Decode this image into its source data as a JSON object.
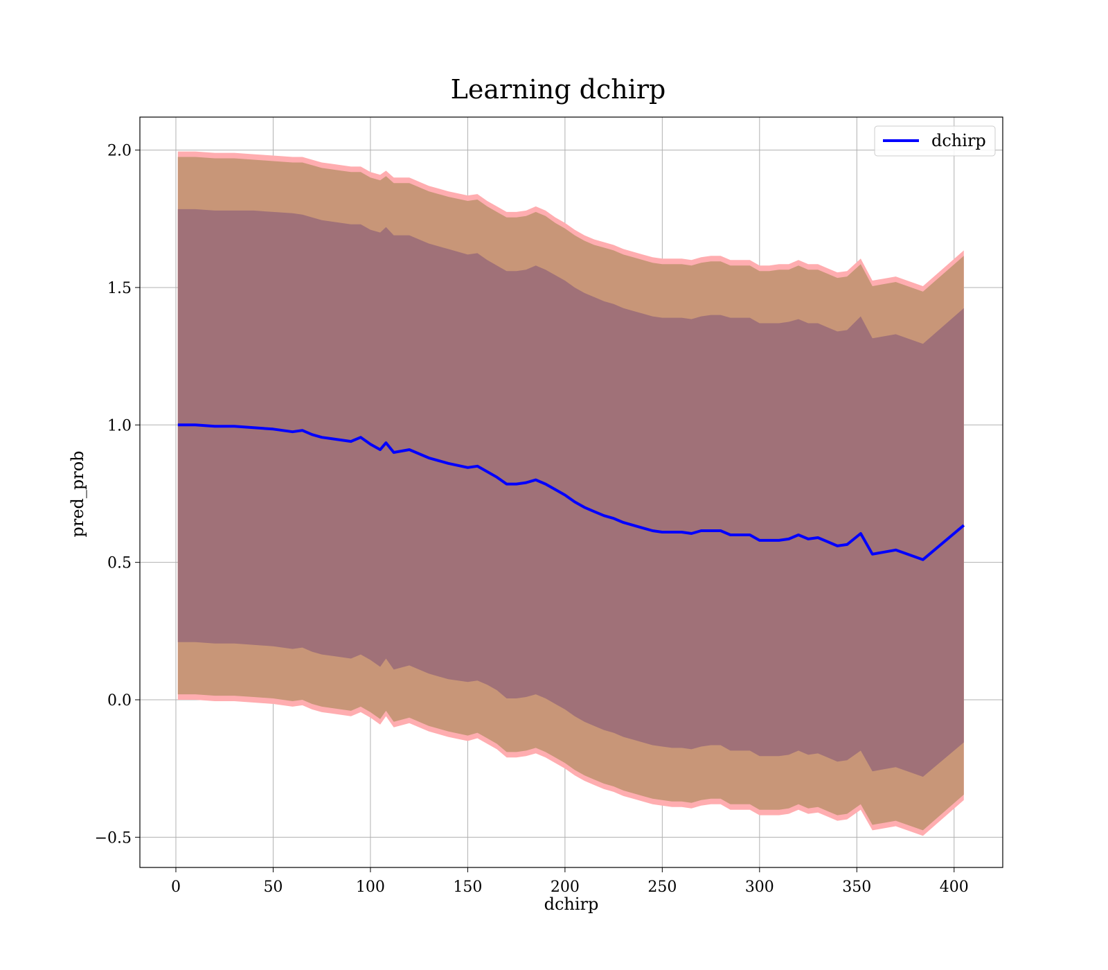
{
  "chart_data": {
    "type": "line",
    "title": "Learning dchirp",
    "xlabel": "dchirp",
    "ylabel": "pred_prob",
    "xlim": [
      -18.5,
      425
    ],
    "ylim": [
      -0.61,
      2.12
    ],
    "xticks": [
      0,
      50,
      100,
      150,
      200,
      250,
      300,
      350,
      400
    ],
    "yticks": [
      -0.5,
      0.0,
      0.5,
      1.0,
      1.5,
      2.0
    ],
    "ytick_labels": [
      "−0.5",
      "0.0",
      "0.5",
      "1.0",
      "1.5",
      "2.0"
    ],
    "grid": true,
    "legend_position": "top-right",
    "colors": {
      "line": "#0000ff",
      "band_outer": "#ffadb0",
      "band_mid": "#c89678",
      "band_inner": "#a07178"
    },
    "series": [
      {
        "name": "dchirp",
        "x": [
          1,
          10,
          20,
          30,
          40,
          50,
          60,
          65,
          70,
          75,
          80,
          85,
          90,
          95,
          100,
          105,
          108,
          112,
          120,
          130,
          140,
          150,
          155,
          160,
          165,
          170,
          175,
          180,
          185,
          190,
          195,
          200,
          205,
          210,
          215,
          220,
          225,
          230,
          235,
          240,
          245,
          250,
          255,
          260,
          265,
          270,
          275,
          280,
          285,
          290,
          295,
          300,
          305,
          310,
          315,
          320,
          325,
          330,
          335,
          340,
          345,
          352,
          358,
          370,
          384,
          405
        ],
        "y": [
          1.0,
          1.0,
          0.995,
          0.995,
          0.99,
          0.985,
          0.975,
          0.98,
          0.965,
          0.955,
          0.95,
          0.945,
          0.94,
          0.955,
          0.93,
          0.91,
          0.935,
          0.9,
          0.91,
          0.88,
          0.86,
          0.845,
          0.85,
          0.83,
          0.81,
          0.785,
          0.785,
          0.79,
          0.8,
          0.785,
          0.765,
          0.745,
          0.72,
          0.7,
          0.685,
          0.67,
          0.66,
          0.645,
          0.635,
          0.625,
          0.615,
          0.61,
          0.61,
          0.61,
          0.605,
          0.615,
          0.615,
          0.615,
          0.6,
          0.6,
          0.6,
          0.58,
          0.58,
          0.58,
          0.585,
          0.6,
          0.585,
          0.59,
          0.575,
          0.56,
          0.565,
          0.605,
          0.53,
          0.545,
          0.51,
          0.635
        ],
        "std1_upper": [
          1.785,
          1.785,
          1.78,
          1.78,
          1.78,
          1.775,
          1.77,
          1.765,
          1.755,
          1.745,
          1.74,
          1.735,
          1.73,
          1.73,
          1.71,
          1.7,
          1.72,
          1.69,
          1.69,
          1.66,
          1.64,
          1.62,
          1.625,
          1.6,
          1.58,
          1.56,
          1.56,
          1.565,
          1.58,
          1.565,
          1.545,
          1.525,
          1.5,
          1.48,
          1.465,
          1.45,
          1.44,
          1.425,
          1.415,
          1.405,
          1.395,
          1.39,
          1.39,
          1.39,
          1.385,
          1.395,
          1.4,
          1.4,
          1.39,
          1.39,
          1.39,
          1.37,
          1.37,
          1.37,
          1.375,
          1.385,
          1.37,
          1.37,
          1.355,
          1.34,
          1.345,
          1.395,
          1.315,
          1.33,
          1.295,
          1.425
        ],
        "std1_lower": [
          0.21,
          0.21,
          0.205,
          0.205,
          0.2,
          0.195,
          0.185,
          0.19,
          0.175,
          0.165,
          0.16,
          0.155,
          0.15,
          0.165,
          0.145,
          0.12,
          0.15,
          0.11,
          0.125,
          0.095,
          0.075,
          0.065,
          0.07,
          0.055,
          0.035,
          0.005,
          0.005,
          0.01,
          0.02,
          0.005,
          -0.015,
          -0.035,
          -0.06,
          -0.08,
          -0.095,
          -0.11,
          -0.12,
          -0.135,
          -0.145,
          -0.155,
          -0.165,
          -0.17,
          -0.175,
          -0.175,
          -0.18,
          -0.17,
          -0.165,
          -0.165,
          -0.185,
          -0.185,
          -0.185,
          -0.205,
          -0.205,
          -0.205,
          -0.2,
          -0.185,
          -0.2,
          -0.195,
          -0.21,
          -0.225,
          -0.22,
          -0.185,
          -0.26,
          -0.245,
          -0.28,
          -0.155
        ],
        "std2_upper": [
          1.975,
          1.975,
          1.97,
          1.97,
          1.965,
          1.96,
          1.955,
          1.955,
          1.945,
          1.935,
          1.93,
          1.925,
          1.92,
          1.92,
          1.9,
          1.89,
          1.905,
          1.88,
          1.88,
          1.85,
          1.83,
          1.815,
          1.82,
          1.795,
          1.775,
          1.755,
          1.755,
          1.76,
          1.775,
          1.76,
          1.735,
          1.715,
          1.69,
          1.67,
          1.655,
          1.645,
          1.635,
          1.62,
          1.61,
          1.6,
          1.59,
          1.585,
          1.585,
          1.585,
          1.58,
          1.59,
          1.595,
          1.595,
          1.58,
          1.58,
          1.58,
          1.56,
          1.56,
          1.565,
          1.565,
          1.58,
          1.565,
          1.565,
          1.55,
          1.535,
          1.54,
          1.585,
          1.505,
          1.52,
          1.485,
          1.615
        ],
        "std2_lower": [
          0.02,
          0.02,
          0.015,
          0.015,
          0.01,
          0.005,
          -0.005,
          0.0,
          -0.015,
          -0.025,
          -0.03,
          -0.035,
          -0.04,
          -0.025,
          -0.045,
          -0.07,
          -0.04,
          -0.08,
          -0.065,
          -0.095,
          -0.115,
          -0.13,
          -0.12,
          -0.14,
          -0.16,
          -0.19,
          -0.19,
          -0.185,
          -0.175,
          -0.19,
          -0.21,
          -0.23,
          -0.255,
          -0.275,
          -0.29,
          -0.305,
          -0.315,
          -0.33,
          -0.34,
          -0.35,
          -0.36,
          -0.365,
          -0.37,
          -0.37,
          -0.375,
          -0.365,
          -0.36,
          -0.36,
          -0.38,
          -0.38,
          -0.38,
          -0.4,
          -0.4,
          -0.4,
          -0.395,
          -0.38,
          -0.395,
          -0.39,
          -0.405,
          -0.42,
          -0.415,
          -0.38,
          -0.455,
          -0.44,
          -0.475,
          -0.345
        ],
        "std3_upper": [
          1.995,
          1.995,
          1.99,
          1.99,
          1.985,
          1.98,
          1.975,
          1.975,
          1.965,
          1.955,
          1.95,
          1.945,
          1.94,
          1.94,
          1.92,
          1.91,
          1.925,
          1.9,
          1.9,
          1.87,
          1.85,
          1.835,
          1.84,
          1.815,
          1.795,
          1.775,
          1.775,
          1.78,
          1.795,
          1.78,
          1.755,
          1.735,
          1.71,
          1.69,
          1.675,
          1.665,
          1.655,
          1.64,
          1.63,
          1.62,
          1.61,
          1.605,
          1.605,
          1.605,
          1.6,
          1.61,
          1.615,
          1.615,
          1.6,
          1.6,
          1.6,
          1.58,
          1.58,
          1.585,
          1.585,
          1.6,
          1.585,
          1.585,
          1.57,
          1.555,
          1.56,
          1.605,
          1.525,
          1.54,
          1.505,
          1.635
        ],
        "std3_lower": [
          0.0,
          0.0,
          -0.005,
          -0.005,
          -0.01,
          -0.015,
          -0.025,
          -0.02,
          -0.035,
          -0.045,
          -0.05,
          -0.055,
          -0.06,
          -0.045,
          -0.065,
          -0.09,
          -0.06,
          -0.1,
          -0.085,
          -0.115,
          -0.135,
          -0.15,
          -0.14,
          -0.16,
          -0.18,
          -0.21,
          -0.21,
          -0.205,
          -0.195,
          -0.21,
          -0.23,
          -0.25,
          -0.275,
          -0.295,
          -0.31,
          -0.325,
          -0.335,
          -0.35,
          -0.36,
          -0.37,
          -0.38,
          -0.385,
          -0.39,
          -0.39,
          -0.395,
          -0.385,
          -0.38,
          -0.38,
          -0.4,
          -0.4,
          -0.4,
          -0.42,
          -0.42,
          -0.42,
          -0.415,
          -0.4,
          -0.415,
          -0.41,
          -0.425,
          -0.44,
          -0.435,
          -0.4,
          -0.475,
          -0.46,
          -0.495,
          -0.365
        ]
      }
    ]
  }
}
